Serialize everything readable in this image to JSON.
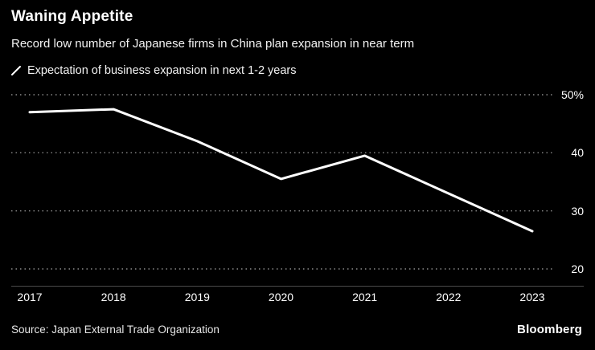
{
  "header": {
    "title": "Waning Appetite",
    "subtitle": "Record low number of Japanese firms in China plan expansion in near term"
  },
  "legend": {
    "label": "Expectation of business expansion in next 1-2 years",
    "key_color": "#ffffff"
  },
  "chart_data": {
    "type": "line",
    "title": "Waning Appetite",
    "subtitle": "Record low number of Japanese firms in China plan expansion in near term",
    "categories": [
      "2017",
      "2018",
      "2019",
      "2020",
      "2021",
      "2022",
      "2023"
    ],
    "series": [
      {
        "name": "Expectation of business expansion in next 1-2 years",
        "values": [
          47,
          47.5,
          42,
          35.5,
          39.5,
          33,
          26.5
        ],
        "color": "#ffffff"
      }
    ],
    "ylim": [
      20,
      52
    ],
    "yticks": [
      {
        "value": 50,
        "label": "50%"
      },
      {
        "value": 40,
        "label": "40"
      },
      {
        "value": 30,
        "label": "30"
      },
      {
        "value": 20,
        "label": "20"
      }
    ],
    "xlabel": "",
    "ylabel": "%",
    "grid": "horizontal-dotted",
    "legend_position": "top-left",
    "background": "#000000",
    "gridline_color": "#8a8a8a",
    "line_width": 3
  },
  "footer": {
    "source": "Source: Japan External Trade Organization",
    "brand": "Bloomberg"
  }
}
